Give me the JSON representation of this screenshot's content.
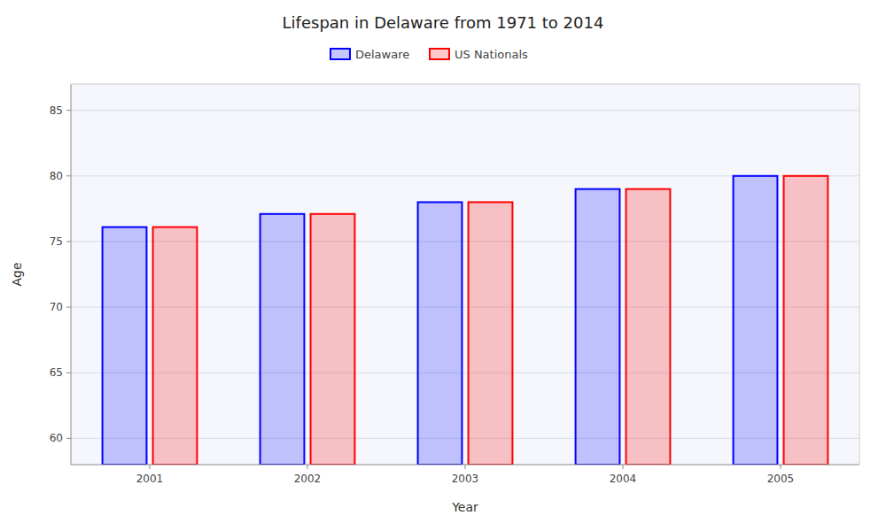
{
  "chart_data": {
    "type": "bar",
    "title": "Lifespan in Delaware from 1971 to 2014",
    "x_label": "Year",
    "y_label": "Age",
    "categories": [
      "2001",
      "2002",
      "2003",
      "2004",
      "2005"
    ],
    "series": [
      {
        "name": "Delaware",
        "color": "#0000ff",
        "values": [
          76.1,
          77.1,
          78.0,
          79.0,
          80.0
        ]
      },
      {
        "name": "US Nationals",
        "color": "#ff0000",
        "values": [
          76.1,
          77.1,
          78.0,
          79.0,
          80.0
        ]
      }
    ],
    "ylim": [
      58,
      87
    ],
    "yticks": [
      60,
      65,
      70,
      75,
      80,
      85
    ],
    "grid": true,
    "legend": "top"
  }
}
